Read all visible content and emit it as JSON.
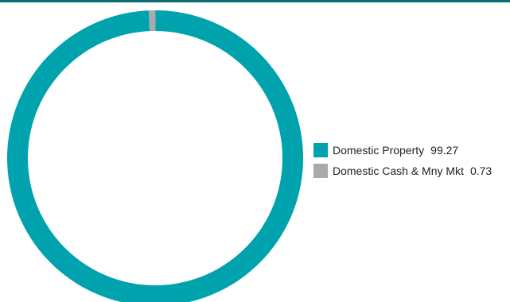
{
  "colors": {
    "top_rule": "#0d6b73",
    "domestic_property": "#00a3ad",
    "domestic_cash": "#aaaaaa"
  },
  "chart_data": {
    "type": "pie",
    "variant": "donut",
    "legend_position": "right",
    "slices": [
      {
        "label": "Domestic Property",
        "value": 99.27,
        "display_value": "99.27",
        "color": "#00a3ad"
      },
      {
        "label": "Domestic Cash & Mny Mkt",
        "value": 0.73,
        "display_value": "0.73",
        "color": "#aaaaaa"
      }
    ]
  }
}
